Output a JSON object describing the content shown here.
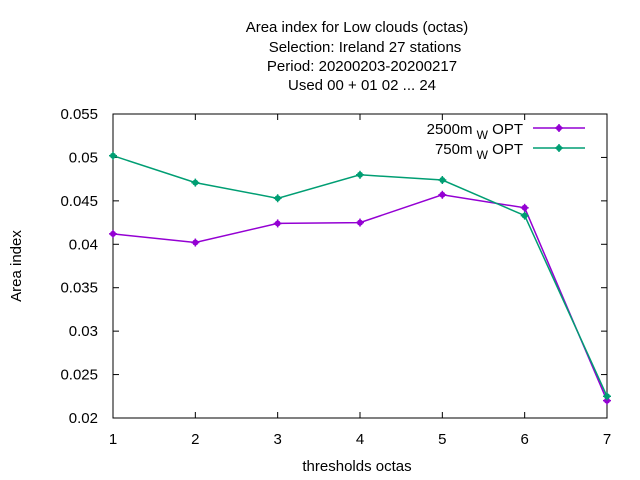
{
  "chart_data": {
    "type": "line",
    "title_lines": [
      "Area index  for Low clouds (octas)",
      "Selection: Ireland     27 stations",
      "Period: 20200203-20200217",
      "Used  00 + 01 02 ... 24"
    ],
    "xlabel": "thresholds octas",
    "ylabel": "Area index",
    "x": [
      1,
      2,
      3,
      4,
      5,
      6,
      7
    ],
    "x_ticks": [
      "1",
      "2",
      "3",
      "4",
      "5",
      "6",
      "7"
    ],
    "xlim": [
      1,
      7
    ],
    "ylim": [
      0.02,
      0.055
    ],
    "y_ticks": [
      "0.02",
      "0.025",
      "0.03",
      "0.035",
      "0.04",
      "0.045",
      "0.05",
      "0.055"
    ],
    "y_tick_values": [
      0.02,
      0.025,
      0.03,
      0.035,
      0.04,
      0.045,
      0.05,
      0.055
    ],
    "grid": false,
    "legend_position": "top-right",
    "series": [
      {
        "name_main": "2500m",
        "name_sub": "W",
        "name_suffix": "OPT",
        "color": "#9400d3",
        "values": [
          0.0412,
          0.0402,
          0.0424,
          0.0425,
          0.0457,
          0.0442,
          0.022
        ]
      },
      {
        "name_main": "750m",
        "name_sub": "W",
        "name_suffix": "OPT",
        "color": "#009e73",
        "values": [
          0.0502,
          0.0471,
          0.0453,
          0.048,
          0.0474,
          0.0433,
          0.0225
        ]
      }
    ]
  }
}
